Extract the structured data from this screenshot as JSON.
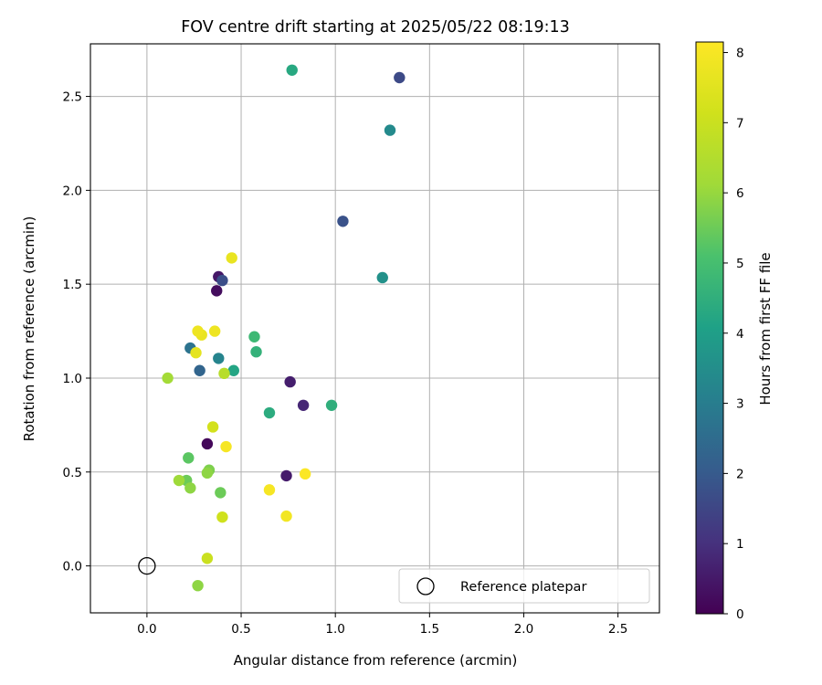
{
  "chart_data": {
    "type": "scatter",
    "title": "FOV centre drift starting at 2025/05/22 08:19:13",
    "xlabel": "Angular distance from reference (arcmin)",
    "ylabel": "Rotation from reference (arcmin)",
    "xlim": [
      -0.3,
      2.72
    ],
    "ylim": [
      -0.25,
      2.78
    ],
    "xticks": [
      "0.0",
      "0.5",
      "1.0",
      "1.5",
      "2.0",
      "2.5"
    ],
    "xtick_values": [
      0.0,
      0.5,
      1.0,
      1.5,
      2.0,
      2.5
    ],
    "yticks": [
      "0.0",
      "0.5",
      "1.0",
      "1.5",
      "2.0",
      "2.5"
    ],
    "ytick_values": [
      0.0,
      0.5,
      1.0,
      1.5,
      2.0,
      2.5
    ],
    "grid": true,
    "colormap": "viridis",
    "colorbar": {
      "label": "Hours from first FF file",
      "range": [
        0,
        8.15
      ],
      "ticks": [
        "0",
        "1",
        "2",
        "3",
        "4",
        "5",
        "6",
        "7",
        "8"
      ],
      "tick_values": [
        0,
        1,
        2,
        3,
        4,
        5,
        6,
        7,
        8
      ]
    },
    "legend": {
      "position": "lower-right",
      "entries": [
        "Reference platepar"
      ]
    },
    "reference_point": {
      "x": 0.0,
      "y": 0.0,
      "marker": "open-circle"
    },
    "points": [
      {
        "x": 0.32,
        "y": 0.65,
        "c": 0.15
      },
      {
        "x": 0.37,
        "y": 1.465,
        "c": 0.25
      },
      {
        "x": 0.38,
        "y": 1.54,
        "c": 0.45
      },
      {
        "x": 0.74,
        "y": 0.48,
        "c": 0.55
      },
      {
        "x": 0.76,
        "y": 0.98,
        "c": 0.6
      },
      {
        "x": 0.83,
        "y": 0.855,
        "c": 0.8
      },
      {
        "x": 0.4,
        "y": 1.52,
        "c": 1.7
      },
      {
        "x": 1.34,
        "y": 2.6,
        "c": 1.6
      },
      {
        "x": 1.04,
        "y": 1.835,
        "c": 1.8
      },
      {
        "x": 0.28,
        "y": 1.04,
        "c": 2.3
      },
      {
        "x": 0.23,
        "y": 1.16,
        "c": 2.7
      },
      {
        "x": 0.38,
        "y": 1.105,
        "c": 3.2
      },
      {
        "x": 1.29,
        "y": 2.32,
        "c": 3.4
      },
      {
        "x": 1.25,
        "y": 1.535,
        "c": 3.6
      },
      {
        "x": 0.46,
        "y": 1.04,
        "c": 4.2
      },
      {
        "x": 0.77,
        "y": 2.64,
        "c": 4.3
      },
      {
        "x": 0.65,
        "y": 0.815,
        "c": 4.4
      },
      {
        "x": 0.58,
        "y": 1.14,
        "c": 4.6
      },
      {
        "x": 0.57,
        "y": 1.22,
        "c": 4.8
      },
      {
        "x": 0.98,
        "y": 0.855,
        "c": 4.5
      },
      {
        "x": 0.22,
        "y": 0.575,
        "c": 5.3
      },
      {
        "x": 0.39,
        "y": 0.39,
        "c": 5.5
      },
      {
        "x": 0.33,
        "y": 0.51,
        "c": 5.7
      },
      {
        "x": 0.21,
        "y": 0.455,
        "c": 5.5
      },
      {
        "x": 0.23,
        "y": 0.415,
        "c": 5.9
      },
      {
        "x": 0.17,
        "y": 0.455,
        "c": 6.1
      },
      {
        "x": 0.32,
        "y": 0.495,
        "c": 5.9
      },
      {
        "x": 0.27,
        "y": -0.105,
        "c": 5.9
      },
      {
        "x": 0.11,
        "y": 1.0,
        "c": 6.2
      },
      {
        "x": 0.41,
        "y": 1.025,
        "c": 6.6
      },
      {
        "x": 0.35,
        "y": 0.74,
        "c": 7.2
      },
      {
        "x": 0.4,
        "y": 0.26,
        "c": 7.1
      },
      {
        "x": 0.32,
        "y": 0.04,
        "c": 7.0
      },
      {
        "x": 0.26,
        "y": 1.135,
        "c": 7.6
      },
      {
        "x": 0.29,
        "y": 1.23,
        "c": 7.7
      },
      {
        "x": 0.27,
        "y": 1.25,
        "c": 7.8
      },
      {
        "x": 0.36,
        "y": 1.25,
        "c": 7.8
      },
      {
        "x": 0.45,
        "y": 1.64,
        "c": 7.7
      },
      {
        "x": 0.42,
        "y": 0.635,
        "c": 8.0
      },
      {
        "x": 0.65,
        "y": 0.405,
        "c": 8.0
      },
      {
        "x": 0.74,
        "y": 0.265,
        "c": 7.9
      },
      {
        "x": 0.84,
        "y": 0.49,
        "c": 8.1
      }
    ]
  }
}
